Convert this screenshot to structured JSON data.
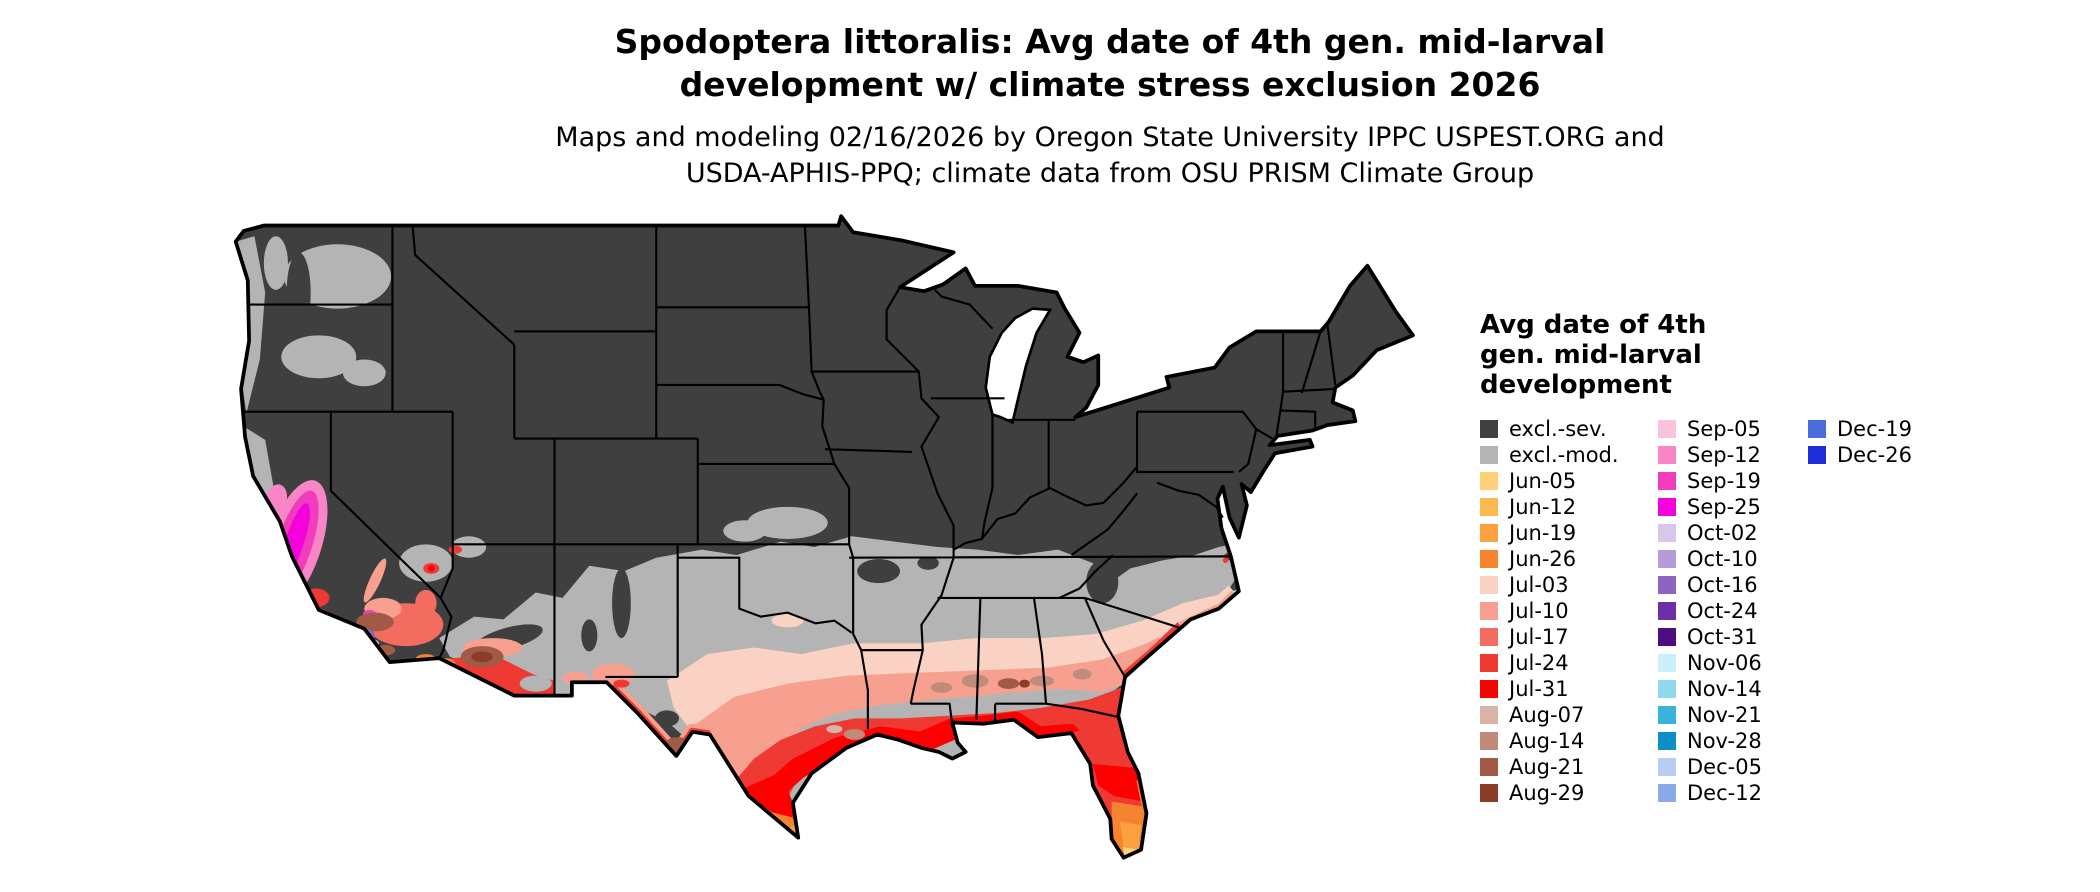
{
  "title": {
    "line1": "Spodoptera littoralis: Avg date of 4th gen. mid-larval",
    "line2": "development w/ climate stress exclusion 2026"
  },
  "subtitle": {
    "line1": "Maps and modeling 02/16/2026 by Oregon State University IPPC USPEST.ORG and",
    "line2": "USDA-APHIS-PPQ; climate data from OSU PRISM Climate Group"
  },
  "legend": {
    "title": "Avg date of 4th\ngen. mid-larval\ndevelopment",
    "columns": [
      {
        "entries": [
          {
            "label": "excl.-sev.",
            "color": "#404040"
          },
          {
            "label": "excl.-mod.",
            "color": "#b4b4b4"
          },
          {
            "label": "Jun-05",
            "color": "#fdd278"
          },
          {
            "label": "Jun-12",
            "color": "#fdb94d"
          },
          {
            "label": "Jun-19",
            "color": "#fca13f"
          },
          {
            "label": "Jun-26",
            "color": "#f5832f"
          },
          {
            "label": "Jul-03",
            "color": "#fad2c3"
          },
          {
            "label": "Jul-10",
            "color": "#f7a08f"
          },
          {
            "label": "Jul-17",
            "color": "#f26c60"
          },
          {
            "label": "Jul-24",
            "color": "#ee3a33"
          },
          {
            "label": "Jul-31",
            "color": "#fd0100"
          },
          {
            "label": "Aug-07",
            "color": "#d9b3a6"
          },
          {
            "label": "Aug-14",
            "color": "#c08b7a"
          },
          {
            "label": "Aug-21",
            "color": "#a05a46"
          },
          {
            "label": "Aug-29",
            "color": "#8a3d28"
          }
        ]
      },
      {
        "entries": [
          {
            "label": "Sep-05",
            "color": "#fbc2dd"
          },
          {
            "label": "Sep-12",
            "color": "#f885c6"
          },
          {
            "label": "Sep-19",
            "color": "#f03cbd"
          },
          {
            "label": "Sep-25",
            "color": "#f401dc"
          },
          {
            "label": "Oct-02",
            "color": "#d9c6e9"
          },
          {
            "label": "Oct-10",
            "color": "#b59cd9"
          },
          {
            "label": "Oct-16",
            "color": "#8d63c3"
          },
          {
            "label": "Oct-24",
            "color": "#6c2fa8"
          },
          {
            "label": "Oct-31",
            "color": "#4e0e82"
          },
          {
            "label": "Nov-06",
            "color": "#cdeffa"
          },
          {
            "label": "Nov-14",
            "color": "#8fd8ee"
          },
          {
            "label": "Nov-21",
            "color": "#3ab3dc"
          },
          {
            "label": "Nov-28",
            "color": "#0b8fc6"
          },
          {
            "label": "Dec-05",
            "color": "#b8cdf2"
          },
          {
            "label": "Dec-12",
            "color": "#8aa9e9"
          }
        ]
      },
      {
        "entries": [
          {
            "label": "Dec-19",
            "color": "#4a6cdc"
          },
          {
            "label": "Dec-26",
            "color": "#1d2ed6"
          }
        ]
      }
    ]
  }
}
